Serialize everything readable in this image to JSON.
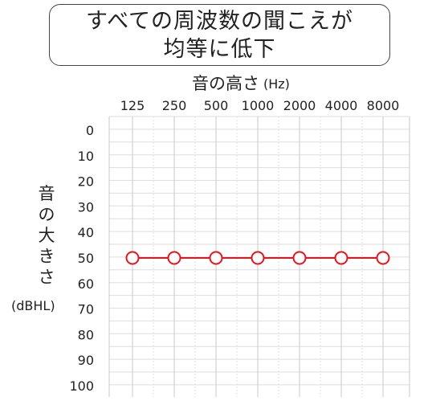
{
  "chart_data": {
    "type": "line",
    "title_lines": [
      "すべての周波数の聞こえが",
      "均等に低下"
    ],
    "xlabel": "音の高さ",
    "xlabel_unit": "(Hz)",
    "ylabel_chars": [
      "音",
      "の",
      "大",
      "き",
      "さ"
    ],
    "ylabel_unit": "(dBHL)",
    "categories": [
      "125",
      "250",
      "500",
      "1000",
      "2000",
      "4000",
      "8000"
    ],
    "y_ticks": [
      "0",
      "10",
      "20",
      "30",
      "40",
      "50",
      "60",
      "70",
      "80",
      "90",
      "100"
    ],
    "ylim": [
      0,
      100
    ],
    "y_inverted": true,
    "grid": true,
    "series": [
      {
        "marker": "circle-open",
        "color": "#e8141c",
        "values": [
          50,
          50,
          50,
          50,
          50,
          50,
          50
        ]
      }
    ]
  }
}
